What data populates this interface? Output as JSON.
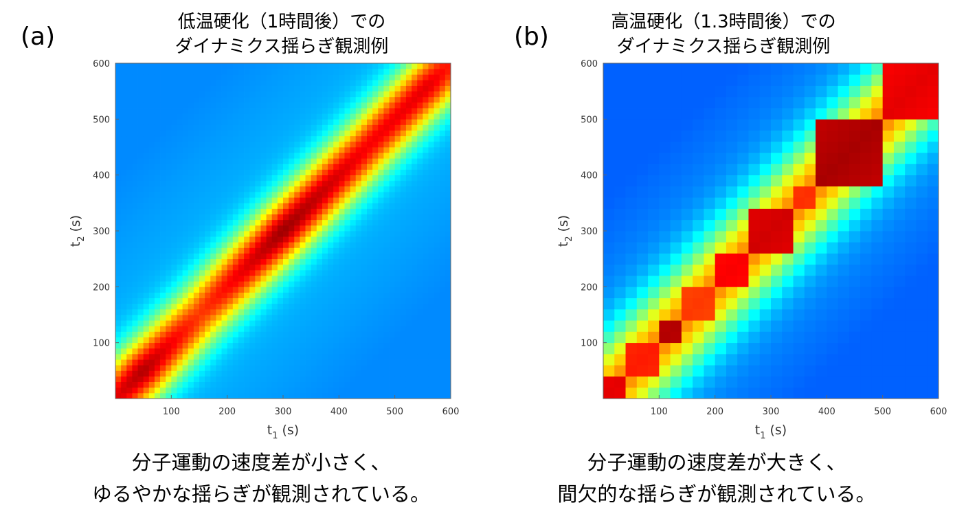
{
  "colors": {
    "axis": "#666666",
    "colormap": "jet"
  },
  "panels": [
    {
      "label": "(a)",
      "title_line1": "低温硬化（1時間後）での",
      "title_line2": "ダイナミクス揺らぎ観測例",
      "caption_line1": "分子運動の速度差が小さく、",
      "caption_line2": "ゆるやかな揺らぎが観測されている。"
    },
    {
      "label": "(b)",
      "title_line1": "高温硬化（1.3時間後）での",
      "title_line2": "ダイナミクス揺らぎ観測例",
      "caption_line1": "分子運動の速度差が大きく、",
      "caption_line2": "間欠的な揺らぎが観測されている。"
    }
  ],
  "chart_data": [
    {
      "type": "heatmap",
      "title": "低温硬化（1時間後）でのダイナミクス揺らぎ観測例",
      "x_label_base": "t",
      "x_label_sub": "1",
      "x_label_unit": "(s)",
      "y_label_base": "t",
      "y_label_sub": "2",
      "y_label_unit": "(s)",
      "xlim": [
        0,
        600
      ],
      "ylim": [
        0,
        600
      ],
      "x_ticks": [
        100,
        200,
        300,
        400,
        500,
        600
      ],
      "y_ticks": [
        100,
        200,
        300,
        400,
        500,
        600
      ],
      "grid_cells": 60,
      "colormap": "jet",
      "description_of_values": "correlation highest along diagonal t1=t2, smooth band",
      "diagonal_width_s": 50,
      "peak_along_diagonal": [
        {
          "t": 0,
          "v": 0.9
        },
        {
          "t": 50,
          "v": 0.95
        },
        {
          "t": 150,
          "v": 0.82
        },
        {
          "t": 300,
          "v": 0.97
        },
        {
          "t": 450,
          "v": 0.88
        },
        {
          "t": 560,
          "v": 0.9
        },
        {
          "t": 600,
          "v": 0.85
        }
      ]
    },
    {
      "type": "heatmap",
      "title": "高温硬化（1.3時間後）でのダイナミクス揺らぎ観測例",
      "x_label_base": "t",
      "x_label_sub": "1",
      "x_label_unit": "(s)",
      "y_label_base": "t",
      "y_label_sub": "2",
      "y_label_unit": "(s)",
      "xlim": [
        0,
        600
      ],
      "ylim": [
        0,
        600
      ],
      "x_ticks": [
        100,
        200,
        300,
        400,
        500,
        600
      ],
      "y_ticks": [
        100,
        200,
        300,
        400,
        500,
        600
      ],
      "grid_cells": 30,
      "colormap": "jet",
      "description_of_values": "block-like intermittent correlation along diagonal",
      "diagonal_width_s": 70,
      "blocks": [
        {
          "start": 0,
          "end": 40,
          "v": 0.9
        },
        {
          "start": 40,
          "end": 100,
          "v": 0.85
        },
        {
          "start": 100,
          "end": 150,
          "v": 0.95
        },
        {
          "start": 150,
          "end": 200,
          "v": 0.82
        },
        {
          "start": 200,
          "end": 260,
          "v": 0.88
        },
        {
          "start": 260,
          "end": 340,
          "v": 0.92
        },
        {
          "start": 340,
          "end": 390,
          "v": 0.83
        },
        {
          "start": 390,
          "end": 510,
          "v": 0.96
        },
        {
          "start": 510,
          "end": 600,
          "v": 0.9
        }
      ]
    }
  ]
}
